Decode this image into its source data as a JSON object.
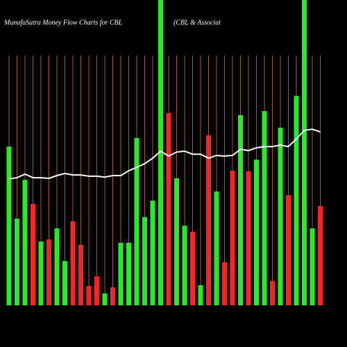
{
  "chart_data": {
    "type": "bar",
    "title": "MunafaSutra  Money Flow  Charts for CBL",
    "subtitle": "(CBL  & Associat",
    "categories": [
      null,
      null,
      null,
      null,
      null,
      null,
      null,
      null,
      null,
      null,
      null,
      null,
      null,
      null,
      null,
      null,
      null,
      null,
      null,
      null,
      null,
      null,
      null,
      null,
      null,
      null,
      null,
      null,
      null,
      null,
      null,
      null,
      null,
      null,
      null,
      null,
      null,
      null,
      null,
      null
    ],
    "values": [
      52.0,
      28.4,
      41.1,
      33.2,
      20.9,
      21.6,
      25.2,
      14.5,
      27.5,
      19.8,
      6.4,
      9.5,
      3.9,
      5.9,
      20.5,
      20.5,
      54.8,
      28.9,
      34.3,
      100,
      63.0,
      41.6,
      26.1,
      24.1,
      6.6,
      55.7,
      37.3,
      14.1,
      44.1,
      62.3,
      43.9,
      47.7,
      63.6,
      8.0,
      58.2,
      36.1,
      68.6,
      100,
      25.2,
      32.5
    ],
    "colors": [
      "#22ee22",
      "#22ee22",
      "#22ee22",
      "#ff2222",
      "#22ee22",
      "#ff2222",
      "#22ee22",
      "#22ee22",
      "#ff2222",
      "#ff2222",
      "#ff2222",
      "#ff2222",
      "#22ee22",
      "#ff2222",
      "#22ee22",
      "#22ee22",
      "#22ee22",
      "#22ee22",
      "#22ee22",
      "#22ee22",
      "#ff2222",
      "#22ee22",
      "#22ee22",
      "#ff2222",
      "#22ee22",
      "#ff2222",
      "#22ee22",
      "#ff2222",
      "#ff2222",
      "#22ee22",
      "#ff2222",
      "#22ee22",
      "#22ee22",
      "#ff2222",
      "#22ee22",
      "#ff2222",
      "#22ee22",
      "#22ee22",
      "#22ee22",
      "#ff2222"
    ],
    "line": {
      "color": "#ffffff",
      "values": [
        41.4,
        41.8,
        43.0,
        41.8,
        41.8,
        41.6,
        42.5,
        43.2,
        42.7,
        42.7,
        42.3,
        42.3,
        42.0,
        42.5,
        42.5,
        44.1,
        45.2,
        46.4,
        48.2,
        50.5,
        48.9,
        50.2,
        50.5,
        49.5,
        49.5,
        48.2,
        49.1,
        48.9,
        49.1,
        51.1,
        50.7,
        51.6,
        52.0,
        52.0,
        52.5,
        52.0,
        54.5,
        57.3,
        57.7,
        56.8
      ]
    },
    "grid_color": "#cc7a00",
    "ylim": [
      0,
      100
    ]
  }
}
